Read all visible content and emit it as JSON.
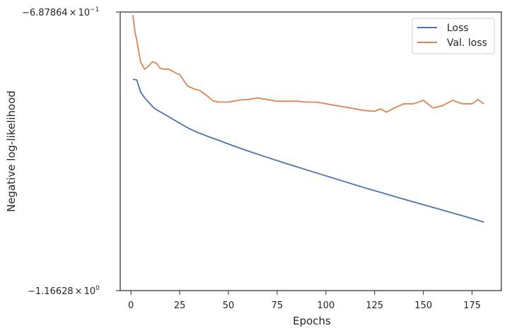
{
  "chart_data": {
    "type": "line",
    "title": "",
    "xlabel": "Epochs",
    "ylabel": "Negative log-likelihood",
    "xlim": [
      -5.5,
      190
    ],
    "ylim": [
      -1.16628,
      -0.687864
    ],
    "yscale": "symlog",
    "xticks": [
      0,
      25,
      50,
      75,
      100,
      125,
      150,
      175
    ],
    "xtick_labels": [
      "0",
      "25",
      "50",
      "75",
      "100",
      "125",
      "150",
      "175"
    ],
    "ytick_labels": {
      "top": {
        "mantissa": "−6.87864",
        "base": "10",
        "exponent": "−1"
      },
      "bottom": {
        "mantissa": "−1.16628",
        "base": "10",
        "exponent": "0"
      }
    },
    "grid": false,
    "legend_position": "top-right",
    "series": [
      {
        "name": "Loss",
        "color": "#4c72b0",
        "x": [
          1,
          3,
          5,
          7,
          10,
          12,
          15,
          20,
          25,
          30,
          35,
          40,
          45,
          50,
          55,
          60,
          70,
          80,
          90,
          100,
          110,
          120,
          130,
          140,
          150,
          160,
          170,
          175,
          181
        ],
        "y": [
          -0.7865,
          -0.7877,
          -0.8065,
          -0.8154,
          -0.8256,
          -0.8321,
          -0.8377,
          -0.8469,
          -0.8563,
          -0.8654,
          -0.8725,
          -0.8787,
          -0.8846,
          -0.8907,
          -0.8967,
          -0.9025,
          -0.9137,
          -0.9245,
          -0.9351,
          -0.9457,
          -0.9563,
          -0.967,
          -0.9771,
          -0.9875,
          -0.9976,
          -1.0078,
          -1.0181,
          -1.0234,
          -1.03
        ]
      },
      {
        "name": "Val. loss",
        "color": "#dd8452",
        "x": [
          1,
          2,
          3,
          5,
          7,
          9,
          11,
          13,
          15,
          17,
          19,
          21,
          23,
          25,
          27,
          29,
          33,
          35,
          38,
          40,
          42,
          45,
          48,
          50,
          55,
          58,
          60,
          65,
          70,
          75,
          80,
          85,
          90,
          95,
          100,
          105,
          110,
          115,
          120,
          125,
          128,
          131,
          135,
          140,
          145,
          150,
          155,
          160,
          165,
          170,
          175,
          178,
          181
        ],
        "y": [
          -0.692,
          -0.7147,
          -0.7283,
          -0.7607,
          -0.771,
          -0.7668,
          -0.76,
          -0.7622,
          -0.7698,
          -0.771,
          -0.771,
          -0.7735,
          -0.7771,
          -0.7792,
          -0.7882,
          -0.7967,
          -0.8023,
          -0.8036,
          -0.8096,
          -0.8146,
          -0.8201,
          -0.8222,
          -0.8222,
          -0.8222,
          -0.8196,
          -0.8182,
          -0.8182,
          -0.8156,
          -0.8182,
          -0.8209,
          -0.8209,
          -0.8209,
          -0.8222,
          -0.8222,
          -0.8249,
          -0.8276,
          -0.8303,
          -0.833,
          -0.8357,
          -0.8371,
          -0.833,
          -0.8384,
          -0.8317,
          -0.8249,
          -0.8249,
          -0.8196,
          -0.8317,
          -0.8276,
          -0.8196,
          -0.8249,
          -0.8249,
          -0.8182,
          -0.8249
        ]
      }
    ]
  }
}
